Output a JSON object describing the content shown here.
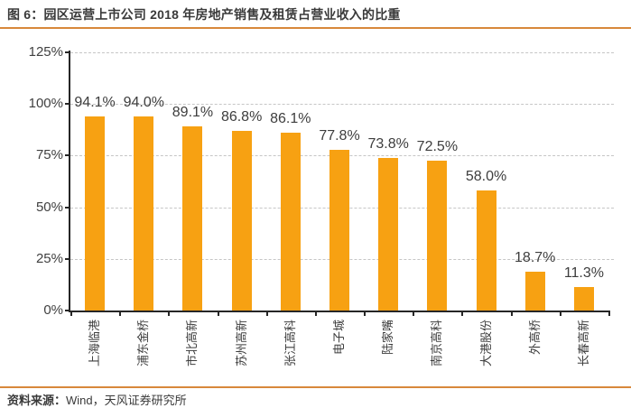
{
  "header": {
    "title": "图 6：园区运营上市公司 2018 年房地产销售及租赁占营业收入的比重"
  },
  "footer": {
    "source_label": "资料来源：",
    "source_text": "Wind，天风证券研究所"
  },
  "colors": {
    "bar": "#f7a112",
    "rule": "#d8883b",
    "grid": "#c6c6c6",
    "axis": "#262626",
    "text": "#3d3d3d"
  },
  "chart_data": {
    "type": "bar",
    "title": "园区运营上市公司2018年房地产销售及租赁占营业收入的比重",
    "categories": [
      "上海临港",
      "浦东金桥",
      "市北高新",
      "苏州高新",
      "张江高科",
      "电子城",
      "陆家嘴",
      "南京高科",
      "大港股份",
      "外高桥",
      "长春高新"
    ],
    "values": [
      94.1,
      94.0,
      89.1,
      86.8,
      86.1,
      77.8,
      73.8,
      72.5,
      58.0,
      18.7,
      11.3
    ],
    "value_labels": [
      "94.1%",
      "94.0%",
      "89.1%",
      "86.8%",
      "86.1%",
      "77.8%",
      "73.8%",
      "72.5%",
      "58.0%",
      "18.7%",
      "11.3%"
    ],
    "ytick_labels": [
      "0%",
      "25%",
      "50%",
      "75%",
      "100%",
      "125%"
    ],
    "ytick_values": [
      0,
      25,
      50,
      75,
      100,
      125
    ],
    "ylim": [
      0,
      125
    ],
    "xlabel": "",
    "ylabel": "",
    "grid": "horizontal-dashed",
    "legend": "none",
    "bar_color": "#f7a112"
  }
}
